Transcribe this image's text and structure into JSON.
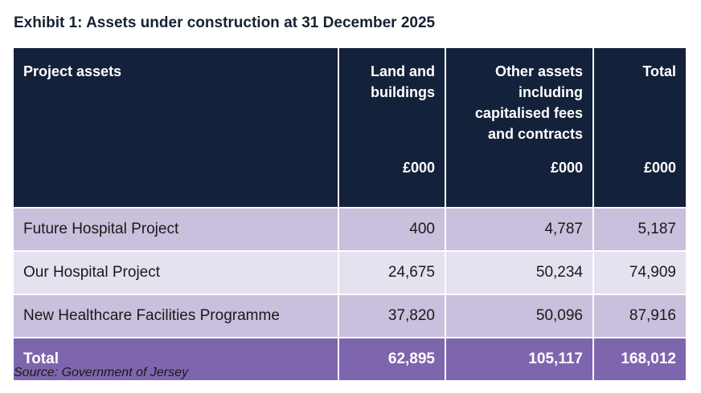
{
  "title": "Exhibit 1: Assets under construction at 31 December 2025",
  "table": {
    "headers": [
      {
        "label": "Project assets",
        "unit": ""
      },
      {
        "label": "Land and buildings",
        "unit": "£000"
      },
      {
        "label": "Other assets including capitalised fees and contracts",
        "unit": "£000"
      },
      {
        "label": "Total",
        "unit": "£000"
      }
    ],
    "rows": [
      {
        "name": "Future Hospital Project",
        "land": "400",
        "other": "4,787",
        "total": "5,187"
      },
      {
        "name": "Our Hospital Project",
        "land": "24,675",
        "other": "50,234",
        "total": "74,909"
      },
      {
        "name": "New Healthcare Facilities Programme",
        "land": "37,820",
        "other": "50,096",
        "total": "87,916"
      }
    ],
    "total_row": {
      "name": "Total",
      "land": "62,895",
      "other": "105,117",
      "total": "168,012"
    }
  },
  "source": "Source: Government of Jersey",
  "colors": {
    "header_bg": "#14213a",
    "row_dark": "#c8c0dc",
    "row_light": "#e5e1ef",
    "total_bg": "#7e66ae"
  }
}
